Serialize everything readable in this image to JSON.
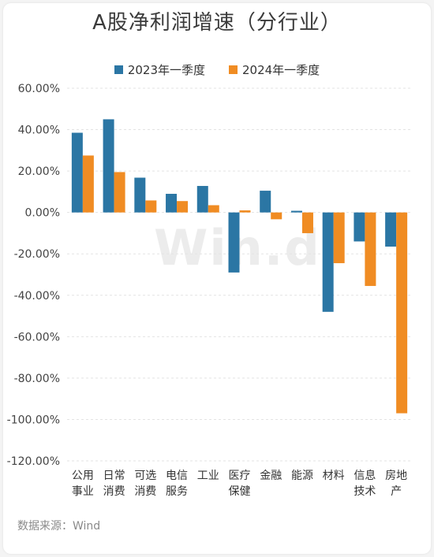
{
  "chart_data": {
    "type": "bar",
    "title": "A股净利润增速（分行业）",
    "categories": [
      [
        "公用",
        "事业"
      ],
      [
        "日常",
        "消费"
      ],
      [
        "可选",
        "消费"
      ],
      [
        "电信",
        "服务"
      ],
      [
        "工业"
      ],
      [
        "医疗",
        "保健"
      ],
      [
        "金融"
      ],
      [
        "能源"
      ],
      [
        "材料"
      ],
      [
        "信息",
        "技术"
      ],
      [
        "房地",
        "产"
      ]
    ],
    "series": [
      {
        "name": "2023年一季度",
        "color": "#2b76a4",
        "values": [
          38.5,
          45.0,
          16.8,
          9.0,
          12.8,
          -29.0,
          10.5,
          0.8,
          -48.0,
          -14.0,
          -16.5
        ]
      },
      {
        "name": "2024年一季度",
        "color": "#f08c23",
        "values": [
          27.5,
          19.5,
          5.8,
          5.5,
          3.5,
          1.0,
          -3.3,
          -10.0,
          -24.5,
          -35.5,
          -97.0
        ]
      }
    ],
    "ylim": [
      -120,
      60
    ],
    "yticks": [
      "60.00%",
      "40.00%",
      "20.00%",
      "0.00%",
      "-20.00%",
      "-40.00%",
      "-60.00%",
      "-80.00%",
      "-100.00%",
      "-120.00%"
    ],
    "ytick_values": [
      60,
      40,
      20,
      0,
      -20,
      -40,
      -60,
      -80,
      -100,
      -120
    ],
    "grid": true,
    "legend": "top-center"
  },
  "source": "数据来源：Wind",
  "watermark": "Win.d"
}
